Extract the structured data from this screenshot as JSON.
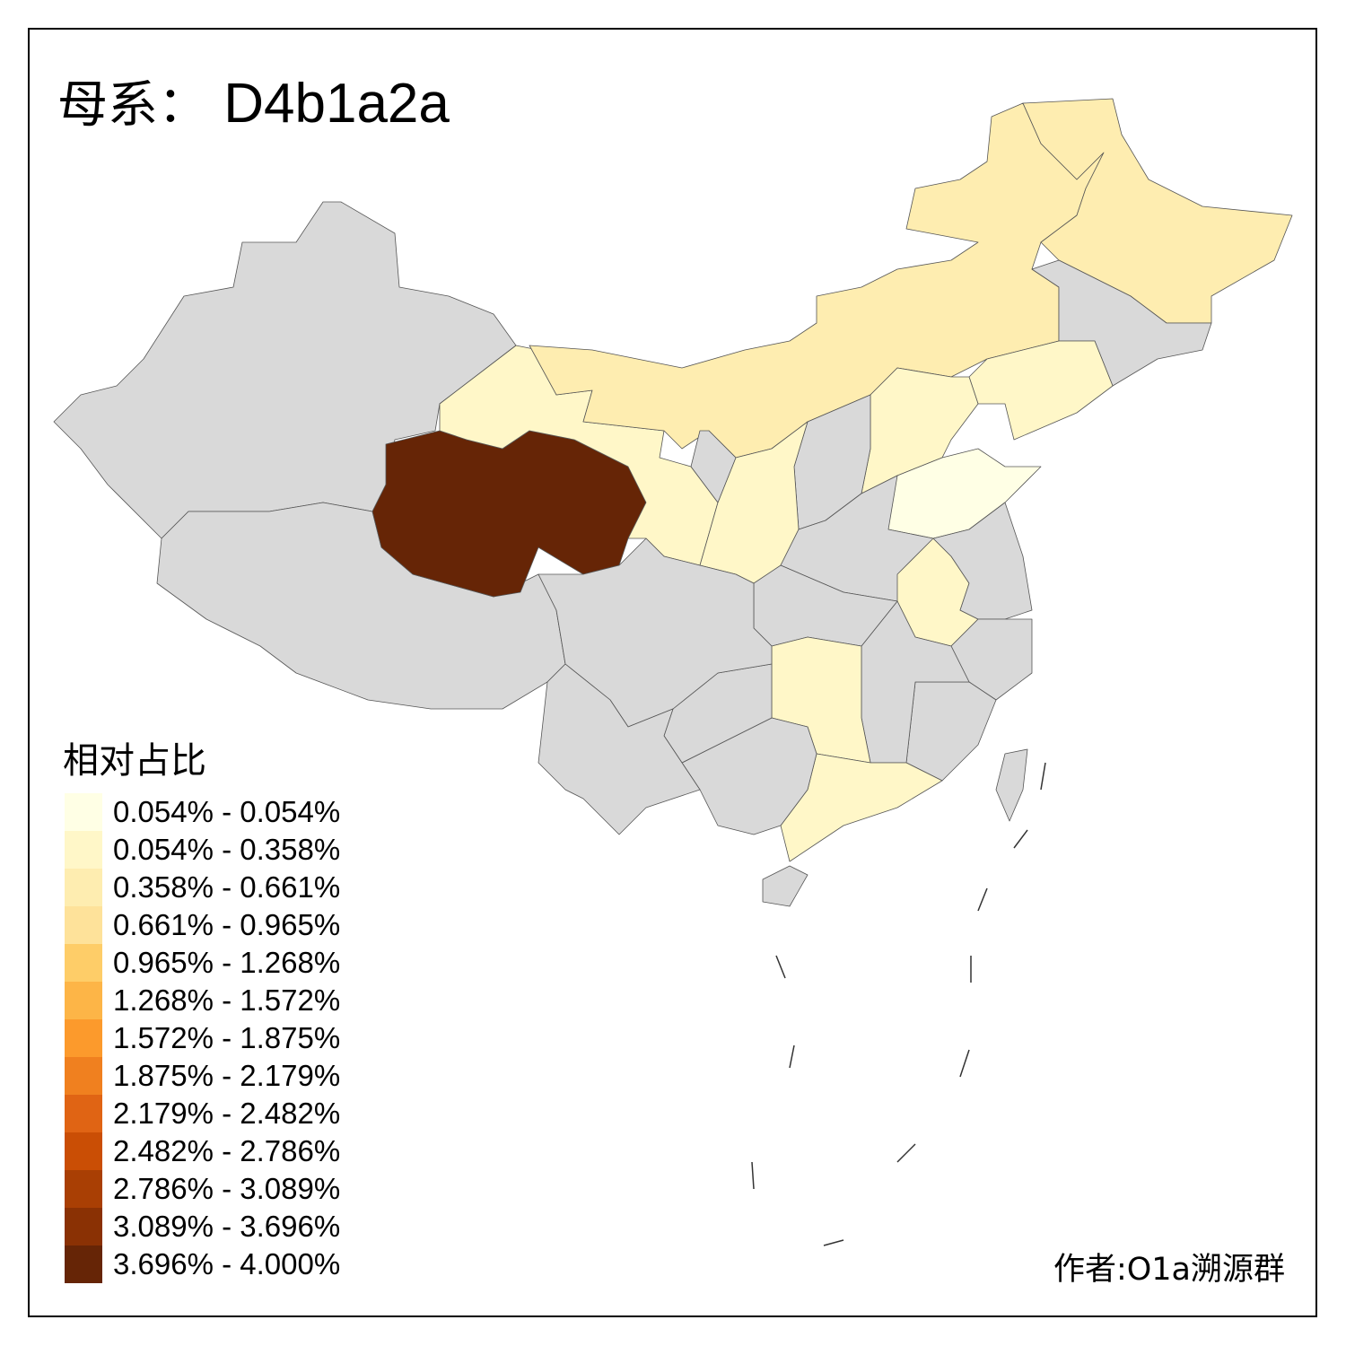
{
  "title": {
    "prefix": "母系：",
    "haplogroup": "D4b1a2a"
  },
  "legend": {
    "title": "相对占比",
    "bins": [
      {
        "label": "0.054% - 0.054%",
        "color": "#FFFFE5"
      },
      {
        "label": "0.054% - 0.358%",
        "color": "#FFF7C8"
      },
      {
        "label": "0.358% - 0.661%",
        "color": "#FEEDB0"
      },
      {
        "label": "0.661% - 0.965%",
        "color": "#FEE29A"
      },
      {
        "label": "0.965% - 1.268%",
        "color": "#FECD68"
      },
      {
        "label": "1.268% - 1.572%",
        "color": "#FDB547"
      },
      {
        "label": "1.572% - 1.875%",
        "color": "#FC9A2C"
      },
      {
        "label": "1.875% - 2.179%",
        "color": "#F0801F"
      },
      {
        "label": "2.179% - 2.482%",
        "color": "#E06414"
      },
      {
        "label": "2.482% - 2.786%",
        "color": "#CA4E05"
      },
      {
        "label": "2.786% - 3.089%",
        "color": "#A93F04"
      },
      {
        "label": "3.089% - 3.696%",
        "color": "#8A3104"
      },
      {
        "label": "3.696% - 4.000%",
        "color": "#662506"
      }
    ],
    "no_data_color": "#D9D9D9"
  },
  "author": "作者:O1a溯源群"
}
